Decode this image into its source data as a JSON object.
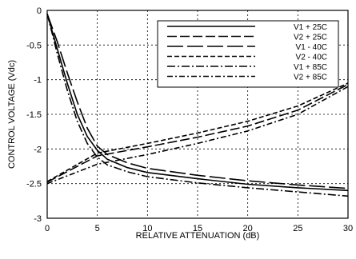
{
  "chart_data": {
    "type": "line",
    "title": "",
    "xlabel": "RELATIVE ATTENUATION  (dB)",
    "ylabel": "CONTROL VOLTAGE (Vdc)",
    "xlim": [
      0,
      30
    ],
    "ylim": [
      -3,
      0
    ],
    "xticks": [
      0,
      5,
      10,
      15,
      20,
      25,
      30
    ],
    "xtick_labels": [
      "0",
      "5",
      "10",
      "15",
      "20",
      "25",
      "30"
    ],
    "yticks": [
      0,
      -0.5,
      -1,
      -1.5,
      -2,
      -2.5,
      -3
    ],
    "ytick_labels": [
      "0",
      "-0.5",
      "-1",
      "-1.5",
      "-2",
      "-2.5",
      "-3"
    ],
    "grid": true,
    "legend_position": "top-right",
    "series": [
      {
        "name": "V1 + 25C",
        "x": [
          0,
          1,
          2,
          3,
          4,
          5,
          6,
          8,
          10,
          15,
          20,
          25,
          30
        ],
        "y": [
          -0.05,
          -0.55,
          -1.05,
          -1.5,
          -1.82,
          -2.02,
          -2.15,
          -2.27,
          -2.34,
          -2.43,
          -2.51,
          -2.56,
          -2.6
        ]
      },
      {
        "name": "V2 + 25C",
        "x": [
          0,
          5,
          10,
          15,
          20,
          25,
          30
        ],
        "y": [
          -2.48,
          -2.1,
          -1.97,
          -1.83,
          -1.67,
          -1.44,
          -1.07
        ]
      },
      {
        "name": "V1 - 40C",
        "x": [
          0,
          1,
          2,
          3,
          4,
          5,
          6,
          8,
          10,
          15,
          20,
          25,
          30
        ],
        "y": [
          -0.05,
          -0.45,
          -0.9,
          -1.32,
          -1.7,
          -1.96,
          -2.08,
          -2.2,
          -2.28,
          -2.38,
          -2.46,
          -2.52,
          -2.57
        ]
      },
      {
        "name": "V2 - 40C",
        "x": [
          0,
          5,
          10,
          15,
          20,
          25,
          30
        ],
        "y": [
          -2.47,
          -2.06,
          -1.92,
          -1.77,
          -1.6,
          -1.38,
          -1.05
        ]
      },
      {
        "name": "V1 + 85C",
        "x": [
          0,
          1,
          2,
          3,
          4,
          5,
          6,
          8,
          10,
          15,
          20,
          25,
          30
        ],
        "y": [
          -0.05,
          -0.62,
          -1.15,
          -1.6,
          -1.92,
          -2.12,
          -2.23,
          -2.33,
          -2.4,
          -2.49,
          -2.56,
          -2.62,
          -2.68
        ]
      },
      {
        "name": "V2 + 85C",
        "x": [
          0,
          5,
          10,
          15,
          20,
          25,
          30
        ],
        "y": [
          -2.5,
          -2.22,
          -2.08,
          -1.92,
          -1.74,
          -1.5,
          -1.1
        ]
      }
    ],
    "colors": {
      "line": "#000000",
      "grid": "#000000",
      "background": "#ffffff"
    }
  }
}
